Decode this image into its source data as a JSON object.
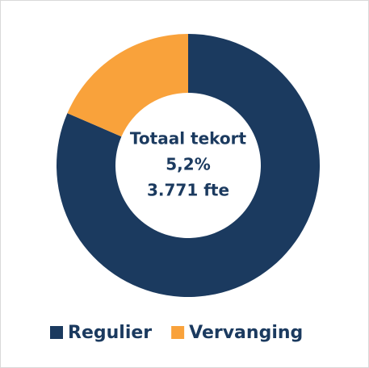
{
  "chart_data": {
    "type": "donut",
    "categories": [
      "Regulier",
      "Vervanging"
    ],
    "values": [
      81.5,
      18.5
    ],
    "colors": [
      "#1b3a5f",
      "#f9a23b"
    ],
    "center_label": [
      "Totaal tekort",
      "5,2%",
      "3.771 fte"
    ],
    "legend": "bottom"
  }
}
